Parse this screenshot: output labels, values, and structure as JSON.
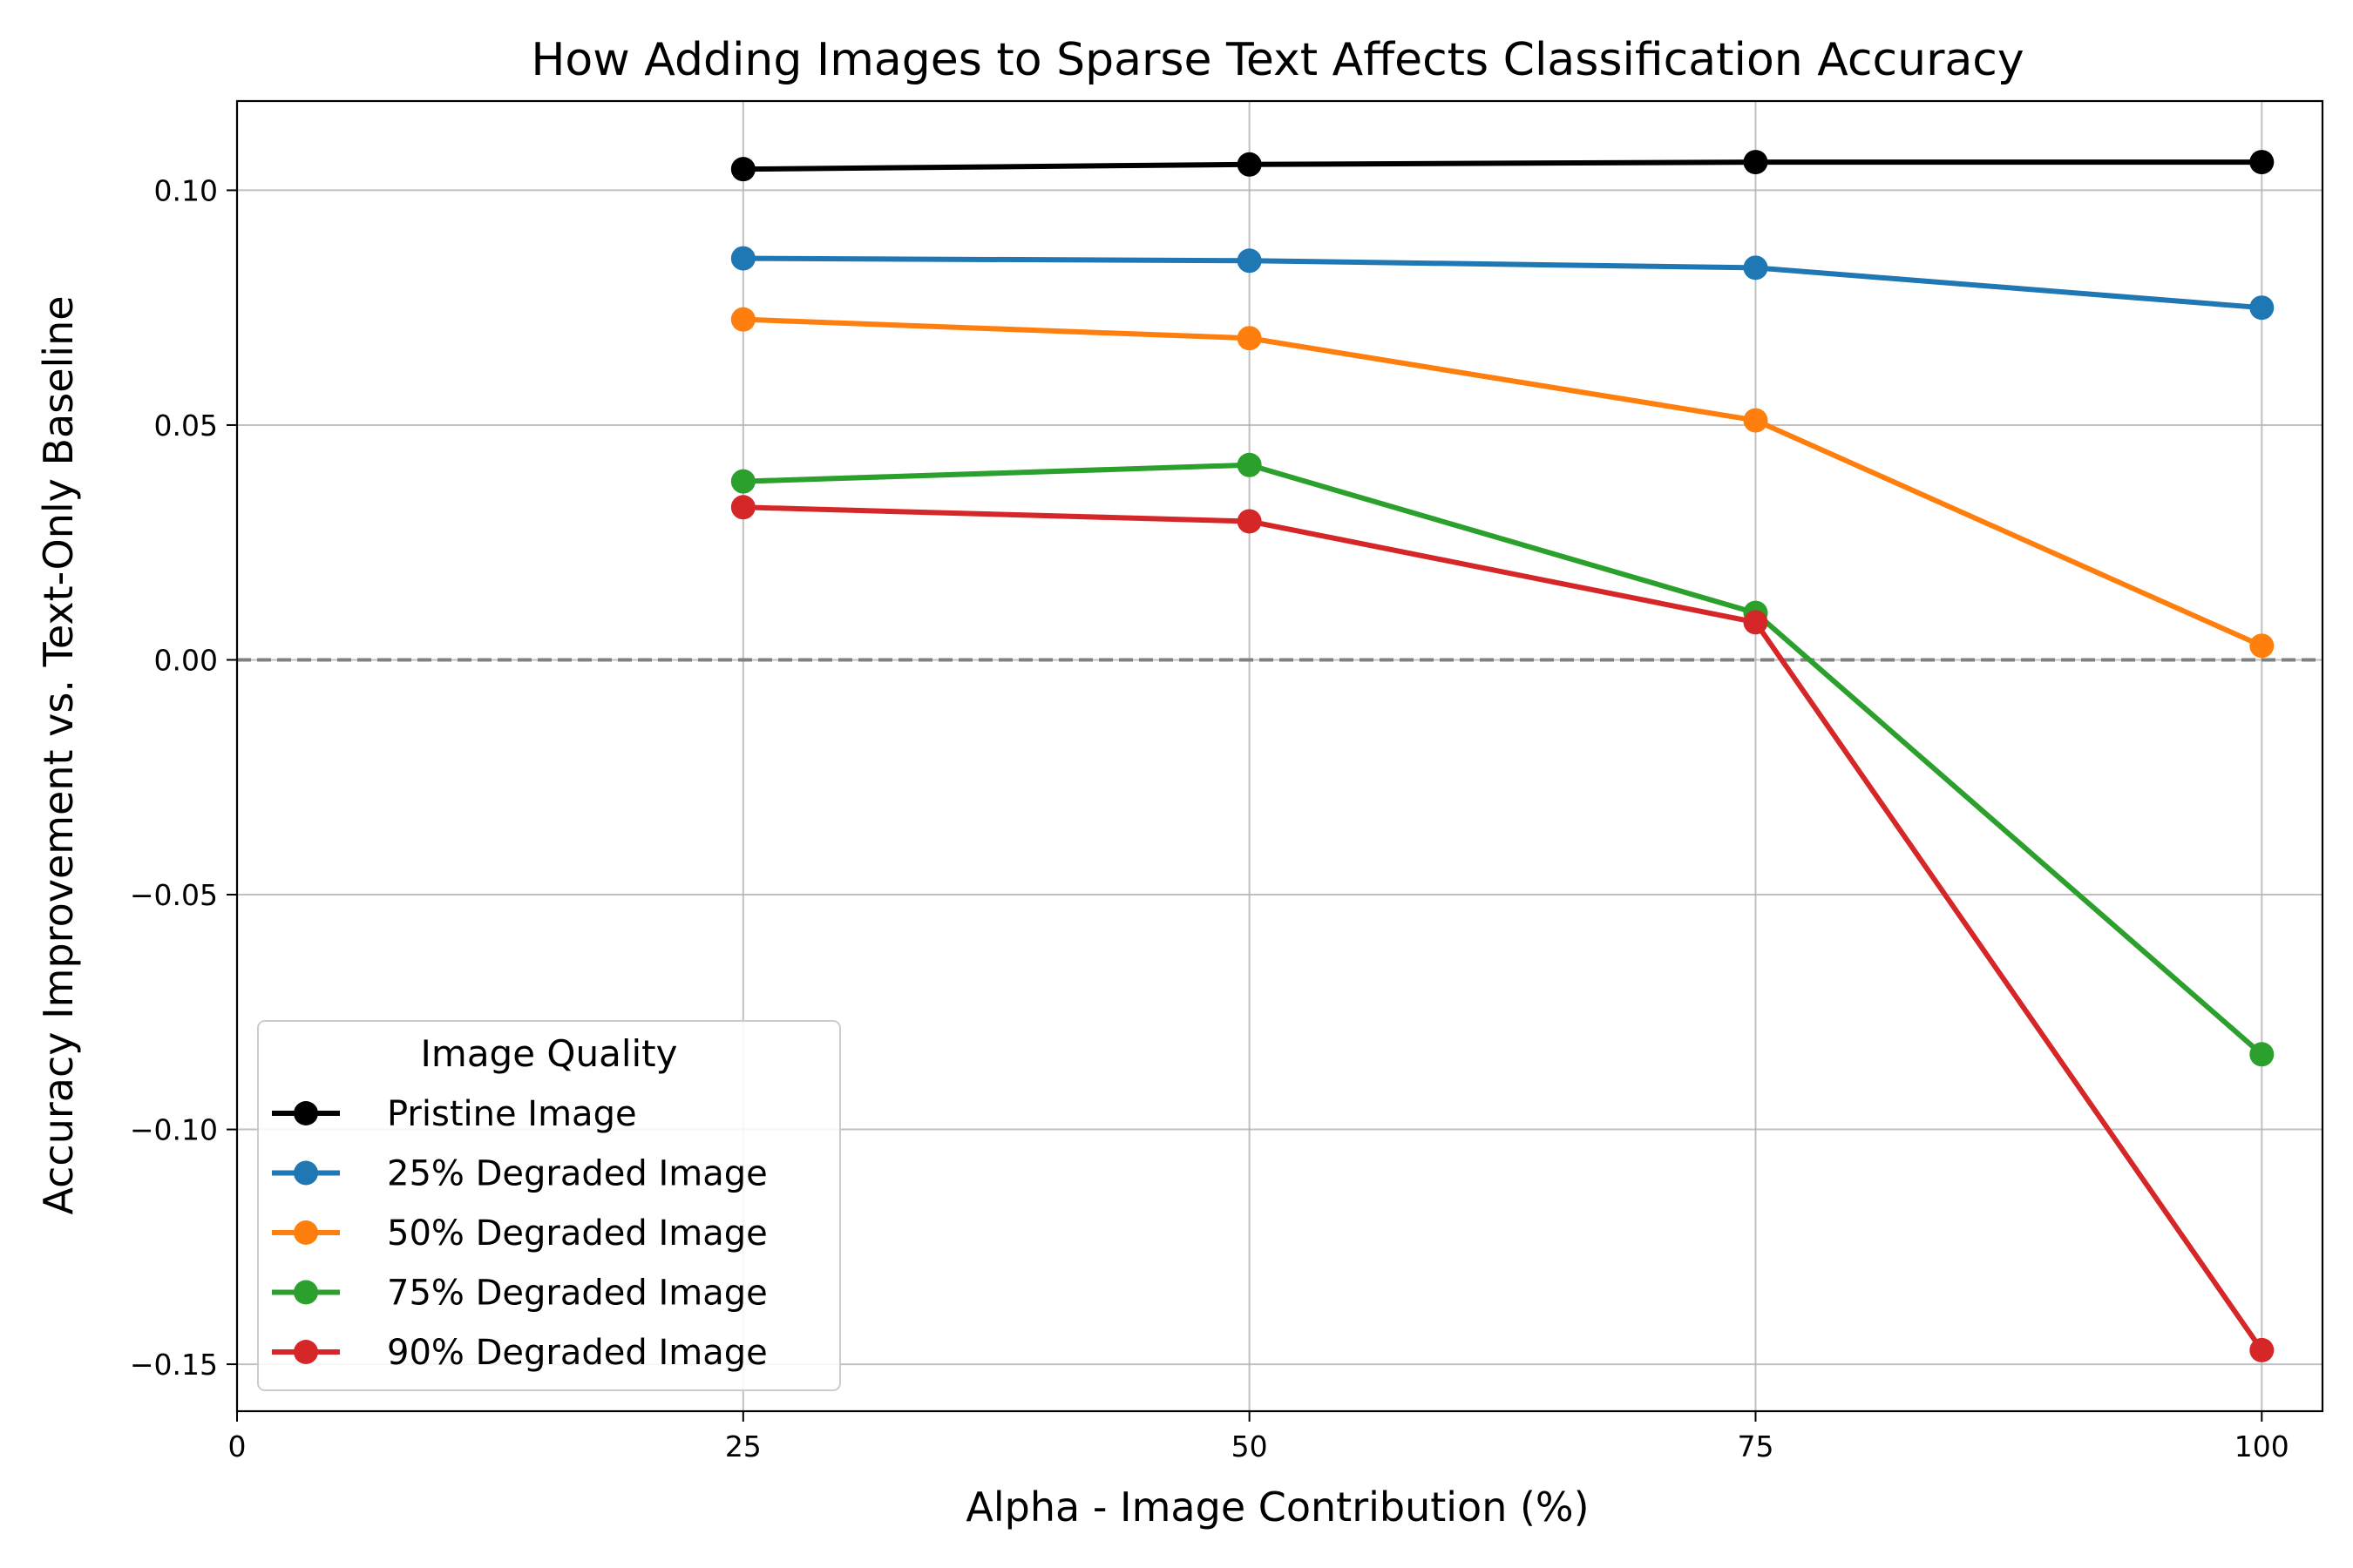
{
  "chart_data": {
    "type": "line",
    "title": "How Adding Images to Sparse Text Affects Classification Accuracy",
    "xlabel": "Alpha - Image Contribution (%)",
    "ylabel": "Accuracy Improvement vs. Text-Only Baseline",
    "xlim": [
      0,
      103
    ],
    "ylim": [
      -0.16,
      0.119
    ],
    "xticks": [
      0,
      25,
      50,
      75,
      100
    ],
    "xtick_labels": [
      "0",
      "25",
      "50",
      "75",
      "100"
    ],
    "yticks": [
      0.1,
      0.05,
      0.0,
      -0.05,
      -0.1,
      -0.15
    ],
    "ytick_labels": [
      "0.10",
      "0.05",
      "0.00",
      "−0.05",
      "−0.10",
      "−0.15"
    ],
    "grid": true,
    "reference_line": {
      "y": 0,
      "style": "dashed",
      "color": "#808080"
    },
    "legend": {
      "title": "Image Quality",
      "placement": "lower-left"
    },
    "x": [
      25,
      50,
      75,
      100
    ],
    "series": [
      {
        "name": "Pristine Image",
        "color": "#000000",
        "values": [
          0.1045,
          0.1055,
          0.106,
          0.106
        ]
      },
      {
        "name": "25% Degraded Image",
        "color": "#1f77b4",
        "values": [
          0.0855,
          0.085,
          0.0835,
          0.075
        ]
      },
      {
        "name": "50% Degraded Image",
        "color": "#ff7f0e",
        "values": [
          0.0725,
          0.0685,
          0.051,
          0.003
        ]
      },
      {
        "name": "75% Degraded Image",
        "color": "#2ca02c",
        "values": [
          0.038,
          0.0415,
          0.01,
          -0.084
        ]
      },
      {
        "name": "90% Degraded Image",
        "color": "#d62728",
        "values": [
          0.0325,
          0.0295,
          0.008,
          -0.147
        ]
      }
    ]
  }
}
